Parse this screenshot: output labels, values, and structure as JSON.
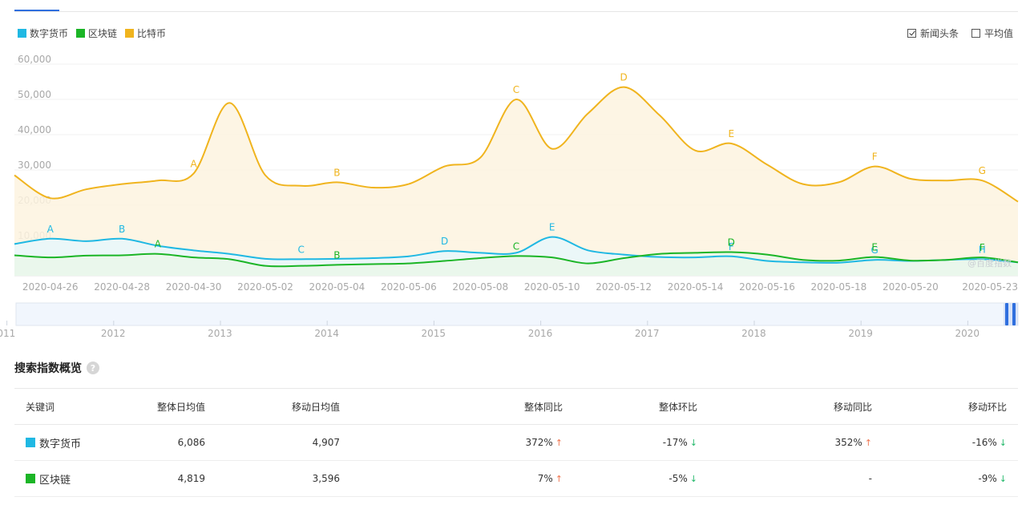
{
  "legend": [
    {
      "name": "数字货币",
      "color": "#1fb8e3"
    },
    {
      "name": "区块链",
      "color": "#1bb526"
    },
    {
      "name": "比特币",
      "color": "#f0b41e"
    }
  ],
  "toggles": [
    {
      "label": "新闻头条",
      "checked": true
    },
    {
      "label": "平均值",
      "checked": false
    }
  ],
  "watermark": "@百度指数",
  "chart_data": {
    "type": "area",
    "ylim": [
      0,
      60000
    ],
    "yticks": [
      60000,
      50000,
      40000,
      30000,
      20000,
      10000
    ],
    "ytick_labels": [
      "60,000",
      "50,000",
      "40,000",
      "30,000",
      "20,000",
      "10,000"
    ],
    "xticks": [
      {
        "date": "2020-04-26",
        "label": "2020-04-26"
      },
      {
        "date": "2020-04-28",
        "label": "2020-04-28"
      },
      {
        "date": "2020-04-30",
        "label": "2020-04-30"
      },
      {
        "date": "2020-05-02",
        "label": "2020-05-02"
      },
      {
        "date": "2020-05-04",
        "label": "2020-05-04"
      },
      {
        "date": "2020-05-06",
        "label": "2020-05-06"
      },
      {
        "date": "2020-05-08",
        "label": "2020-05-08"
      },
      {
        "date": "2020-05-10",
        "label": "2020-05-10"
      },
      {
        "date": "2020-05-12",
        "label": "2020-05-12"
      },
      {
        "date": "2020-05-14",
        "label": "2020-05-14"
      },
      {
        "date": "2020-05-16",
        "label": "2020-05-16"
      },
      {
        "date": "2020-05-18",
        "label": "2020-05-18"
      },
      {
        "date": "2020-05-20",
        "label": "2020-05-20"
      },
      {
        "date": "2020-05-23",
        "label": "2020-05-23"
      }
    ],
    "x_start": "2020-04-25",
    "x_end": "2020-05-23",
    "series": [
      {
        "name": "比特币",
        "color": "#f0b41e",
        "fill": "#fdf3df",
        "x": [
          "2020-04-25",
          "2020-04-26",
          "2020-04-27",
          "2020-04-28",
          "2020-04-29",
          "2020-04-30",
          "2020-05-01",
          "2020-05-02",
          "2020-05-03",
          "2020-05-04",
          "2020-05-05",
          "2020-05-06",
          "2020-05-07",
          "2020-05-08",
          "2020-05-09",
          "2020-05-10",
          "2020-05-11",
          "2020-05-12",
          "2020-05-13",
          "2020-05-14",
          "2020-05-15",
          "2020-05-16",
          "2020-05-17",
          "2020-05-18",
          "2020-05-19",
          "2020-05-20",
          "2020-05-21",
          "2020-05-22",
          "2020-05-23"
        ],
        "values": [
          28500,
          22000,
          24500,
          26000,
          27000,
          29000,
          49000,
          28500,
          25500,
          26500,
          25000,
          26000,
          31000,
          33500,
          50000,
          36000,
          46000,
          53500,
          45500,
          35500,
          37500,
          31500,
          26000,
          26500,
          31000,
          27500,
          27000,
          27000,
          21000
        ]
      },
      {
        "name": "数字货币",
        "color": "#1fb8e3",
        "fill": "#e7f7fb",
        "x": [
          "2020-04-25",
          "2020-04-26",
          "2020-04-27",
          "2020-04-28",
          "2020-04-29",
          "2020-04-30",
          "2020-05-01",
          "2020-05-02",
          "2020-05-03",
          "2020-05-04",
          "2020-05-05",
          "2020-05-06",
          "2020-05-07",
          "2020-05-08",
          "2020-05-09",
          "2020-05-10",
          "2020-05-11",
          "2020-05-12",
          "2020-05-13",
          "2020-05-14",
          "2020-05-15",
          "2020-05-16",
          "2020-05-17",
          "2020-05-18",
          "2020-05-19",
          "2020-05-20",
          "2020-05-21",
          "2020-05-22",
          "2020-05-23"
        ],
        "values": [
          9000,
          10500,
          9800,
          10500,
          8500,
          7200,
          6200,
          4800,
          4700,
          4800,
          5000,
          5500,
          7000,
          6500,
          6500,
          11000,
          7200,
          6000,
          5300,
          5200,
          5500,
          4200,
          3800,
          3700,
          4500,
          4200,
          4500,
          4700,
          3800
        ]
      },
      {
        "name": "区块链",
        "color": "#1bb526",
        "fill": "#eaf7ea",
        "x": [
          "2020-04-25",
          "2020-04-26",
          "2020-04-27",
          "2020-04-28",
          "2020-04-29",
          "2020-04-30",
          "2020-05-01",
          "2020-05-02",
          "2020-05-03",
          "2020-05-04",
          "2020-05-05",
          "2020-05-06",
          "2020-05-07",
          "2020-05-08",
          "2020-05-09",
          "2020-05-10",
          "2020-05-11",
          "2020-05-12",
          "2020-05-13",
          "2020-05-14",
          "2020-05-15",
          "2020-05-16",
          "2020-05-17",
          "2020-05-18",
          "2020-05-19",
          "2020-05-20",
          "2020-05-21",
          "2020-05-22",
          "2020-05-23"
        ],
        "values": [
          5800,
          5200,
          5700,
          5800,
          6200,
          5200,
          4700,
          2800,
          2800,
          3100,
          3300,
          3500,
          4200,
          5000,
          5600,
          5200,
          3500,
          5000,
          6200,
          6500,
          6700,
          6000,
          4500,
          4300,
          5300,
          4300,
          4500,
          5200,
          3800
        ]
      }
    ],
    "annotations": [
      {
        "series": "比特币",
        "label": "A",
        "x": "2020-04-30"
      },
      {
        "series": "比特币",
        "label": "B",
        "x": "2020-05-04"
      },
      {
        "series": "比特币",
        "label": "C",
        "x": "2020-05-09"
      },
      {
        "series": "比特币",
        "label": "D",
        "x": "2020-05-12"
      },
      {
        "series": "比特币",
        "label": "E",
        "x": "2020-05-15"
      },
      {
        "series": "比特币",
        "label": "F",
        "x": "2020-05-19"
      },
      {
        "series": "比特币",
        "label": "G",
        "x": "2020-05-22"
      },
      {
        "series": "数字货币",
        "label": "A",
        "x": "2020-04-26"
      },
      {
        "series": "数字货币",
        "label": "B",
        "x": "2020-04-28"
      },
      {
        "series": "数字货币",
        "label": "C",
        "x": "2020-05-03"
      },
      {
        "series": "数字货币",
        "label": "D",
        "x": "2020-05-07"
      },
      {
        "series": "数字货币",
        "label": "E",
        "x": "2020-05-10"
      },
      {
        "series": "数字货币",
        "label": "F",
        "x": "2020-05-15"
      },
      {
        "series": "数字货币",
        "label": "G",
        "x": "2020-05-19"
      },
      {
        "series": "数字货币",
        "label": "H",
        "x": "2020-05-22"
      },
      {
        "series": "区块链",
        "label": "A",
        "x": "2020-04-29"
      },
      {
        "series": "区块链",
        "label": "B",
        "x": "2020-05-04"
      },
      {
        "series": "区块链",
        "label": "C",
        "x": "2020-05-09"
      },
      {
        "series": "区块链",
        "label": "D",
        "x": "2020-05-15"
      },
      {
        "series": "区块链",
        "label": "E",
        "x": "2020-05-19"
      },
      {
        "series": "区块链",
        "label": "F",
        "x": "2020-05-22"
      }
    ],
    "overview_years": [
      "2011",
      "2012",
      "2013",
      "2014",
      "2015",
      "2016",
      "2017",
      "2018",
      "2019",
      "2020"
    ]
  },
  "overview": {
    "title": "搜索指数概览",
    "help": "?",
    "columns": [
      "关键词",
      "整体日均值",
      "移动日均值",
      "整体同比",
      "整体环比",
      "移动同比",
      "移动环比"
    ],
    "rows": [
      {
        "keyword": "数字货币",
        "color": "#1fb8e3",
        "cells": [
          {
            "v": "6,086"
          },
          {
            "v": "4,907"
          },
          {
            "v": "372%",
            "dir": "up"
          },
          {
            "v": "-17%",
            "dir": "down"
          },
          {
            "v": "352%",
            "dir": "up"
          },
          {
            "v": "-16%",
            "dir": "down"
          }
        ]
      },
      {
        "keyword": "区块链",
        "color": "#1bb526",
        "cells": [
          {
            "v": "4,819"
          },
          {
            "v": "3,596"
          },
          {
            "v": "7%",
            "dir": "up"
          },
          {
            "v": "-5%",
            "dir": "down"
          },
          {
            "v": "-"
          },
          {
            "v": "-9%",
            "dir": "down"
          }
        ]
      }
    ]
  }
}
